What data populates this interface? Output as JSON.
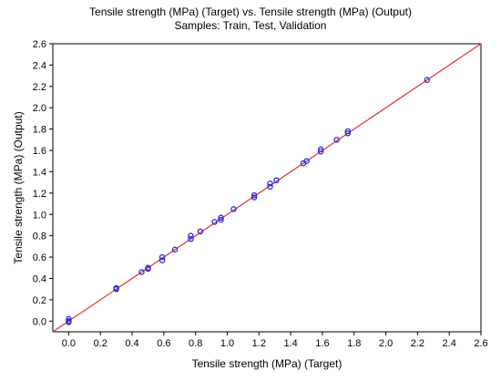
{
  "chart_data": {
    "type": "scatter",
    "title": "Tensile strength (MPa) (Target) vs. Tensile strength (MPa) (Output)",
    "subtitle": "Samples: Train, Test, Validation",
    "xlabel": "Tensile strength (MPa) (Target)",
    "ylabel": "Tensile strength (MPa) (Output)",
    "xlim": [
      -0.1,
      2.6
    ],
    "ylim": [
      -0.1,
      2.6
    ],
    "xticks": [
      "0.0",
      "0.2",
      "0.4",
      "0.6",
      "0.8",
      "1.0",
      "1.2",
      "1.4",
      "1.6",
      "1.8",
      "2.0",
      "2.2",
      "2.4",
      "2.6"
    ],
    "yticks": [
      "0.0",
      "0.2",
      "0.4",
      "0.6",
      "0.8",
      "1.0",
      "1.2",
      "1.4",
      "1.6",
      "1.8",
      "2.0",
      "2.2",
      "2.4",
      "2.6"
    ],
    "grid": false,
    "reference_line": {
      "kind": "y = x",
      "color": "#e03030"
    },
    "marker_color": "#2a2ae0",
    "points": [
      {
        "x": 0.0,
        "y": 0.02
      },
      {
        "x": 0.0,
        "y": 0.0
      },
      {
        "x": 0.0,
        "y": -0.01
      },
      {
        "x": 0.3,
        "y": 0.3
      },
      {
        "x": 0.3,
        "y": 0.31
      },
      {
        "x": 0.46,
        "y": 0.46
      },
      {
        "x": 0.5,
        "y": 0.49
      },
      {
        "x": 0.5,
        "y": 0.5
      },
      {
        "x": 0.59,
        "y": 0.57
      },
      {
        "x": 0.59,
        "y": 0.6
      },
      {
        "x": 0.67,
        "y": 0.67
      },
      {
        "x": 0.77,
        "y": 0.77
      },
      {
        "x": 0.77,
        "y": 0.8
      },
      {
        "x": 0.83,
        "y": 0.84
      },
      {
        "x": 0.92,
        "y": 0.93
      },
      {
        "x": 0.96,
        "y": 0.95
      },
      {
        "x": 0.96,
        "y": 0.97
      },
      {
        "x": 1.04,
        "y": 1.05
      },
      {
        "x": 1.17,
        "y": 1.16
      },
      {
        "x": 1.17,
        "y": 1.18
      },
      {
        "x": 1.27,
        "y": 1.26
      },
      {
        "x": 1.27,
        "y": 1.29
      },
      {
        "x": 1.31,
        "y": 1.32
      },
      {
        "x": 1.48,
        "y": 1.48
      },
      {
        "x": 1.5,
        "y": 1.5
      },
      {
        "x": 1.59,
        "y": 1.59
      },
      {
        "x": 1.59,
        "y": 1.61
      },
      {
        "x": 1.69,
        "y": 1.7
      },
      {
        "x": 1.76,
        "y": 1.76
      },
      {
        "x": 1.76,
        "y": 1.78
      },
      {
        "x": 2.26,
        "y": 2.26
      }
    ]
  }
}
